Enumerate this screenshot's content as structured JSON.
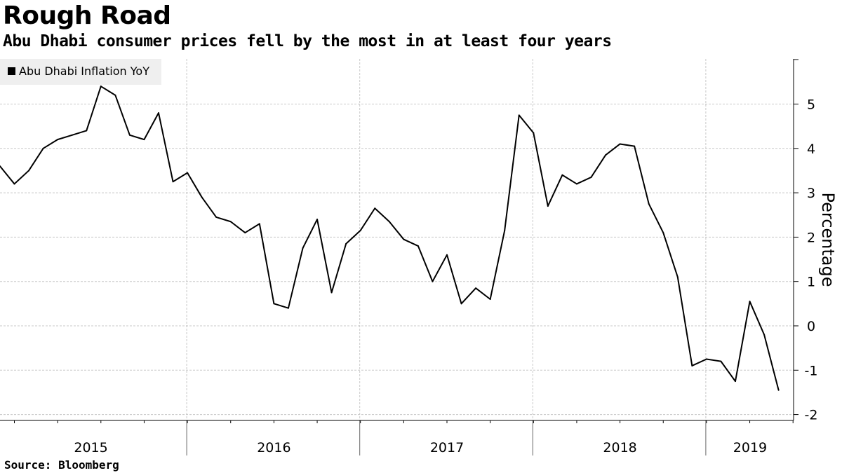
{
  "title": "Rough Road",
  "subtitle": "Abu Dhabi consumer prices fell by the most in at least four years",
  "source": "Source:  Bloomberg",
  "legend": {
    "label": "Abu Dhabi Inflation YoY",
    "color": "#000000"
  },
  "chart_data": {
    "type": "line",
    "title": "Rough Road",
    "subtitle": "Abu Dhabi consumer prices fell by the most in at least four years",
    "xlabel": "",
    "ylabel": "Percentage",
    "ylim": [
      -2,
      6
    ],
    "yticks": [
      -2,
      -1,
      0,
      1,
      2,
      3,
      4,
      5
    ],
    "y_axis_side": "right",
    "grid": true,
    "legend_position": "top-left",
    "x_start": "2014-12",
    "x_end": "2019-07",
    "year_labels": [
      "2015",
      "2016",
      "2017",
      "2018",
      "2019"
    ],
    "series": [
      {
        "name": "Abu Dhabi Inflation YoY",
        "color": "#000000",
        "start": "2014-12",
        "frequency": "monthly",
        "values": [
          3.6,
          3.2,
          3.5,
          4.0,
          4.2,
          4.3,
          4.4,
          5.4,
          5.2,
          4.3,
          4.2,
          4.8,
          3.25,
          3.45,
          2.9,
          2.45,
          2.35,
          2.1,
          2.3,
          0.5,
          0.4,
          1.75,
          2.4,
          0.75,
          1.85,
          2.15,
          2.65,
          2.35,
          1.95,
          1.8,
          1.0,
          1.6,
          0.5,
          0.85,
          0.6,
          2.15,
          4.75,
          4.35,
          2.7,
          3.4,
          3.2,
          3.35,
          3.85,
          4.1,
          4.05,
          2.75,
          2.1,
          1.1,
          -0.9,
          -0.75,
          -0.8,
          -1.25,
          0.55,
          -0.2,
          -1.45
        ]
      }
    ]
  }
}
